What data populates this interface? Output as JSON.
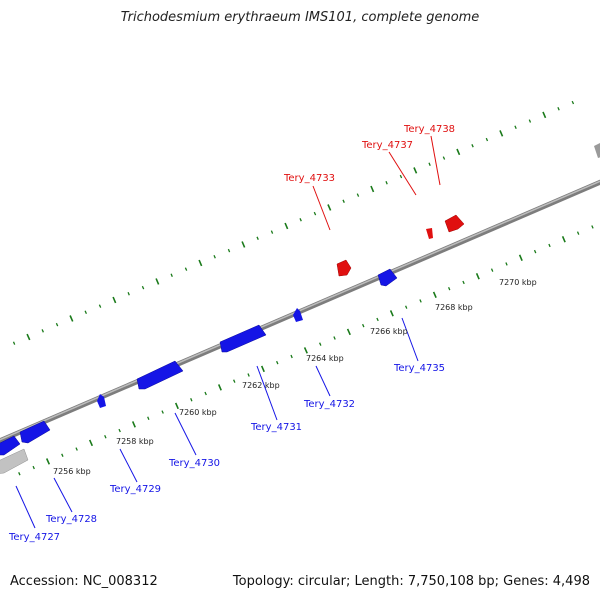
{
  "title": "Trichodesmium erythraeum IMS101, complete genome",
  "accession": "Accession: NC_008312",
  "summary": "Topology: circular; Length: 7,750,108 bp; Genes: 4,498",
  "colors": {
    "backbone": "#8a8a8a",
    "forward_gene": "#e01010",
    "reverse_gene": "#1515e6",
    "neutral_gene": "#b5b5b5",
    "ticks": "#1a7a1a"
  },
  "ticks": [
    {
      "label": "7256 kbp"
    },
    {
      "label": "7258 kbp"
    },
    {
      "label": "7260 kbp"
    },
    {
      "label": "7262 kbp"
    },
    {
      "label": "7264 kbp"
    },
    {
      "label": "7266 kbp"
    },
    {
      "label": "7268 kbp"
    },
    {
      "label": "7270 kbp"
    }
  ],
  "genes": [
    {
      "name": "Tery_4727",
      "strand": "reverse"
    },
    {
      "name": "Tery_4728",
      "strand": "reverse"
    },
    {
      "name": "Tery_4729",
      "strand": "reverse"
    },
    {
      "name": "Tery_4730",
      "strand": "reverse"
    },
    {
      "name": "Tery_4731",
      "strand": "reverse"
    },
    {
      "name": "Tery_4732",
      "strand": "reverse"
    },
    {
      "name": "Tery_4735",
      "strand": "reverse"
    },
    {
      "name": "Tery_4733",
      "strand": "forward"
    },
    {
      "name": "Tery_4737",
      "strand": "forward"
    },
    {
      "name": "Tery_4738",
      "strand": "forward"
    }
  ]
}
